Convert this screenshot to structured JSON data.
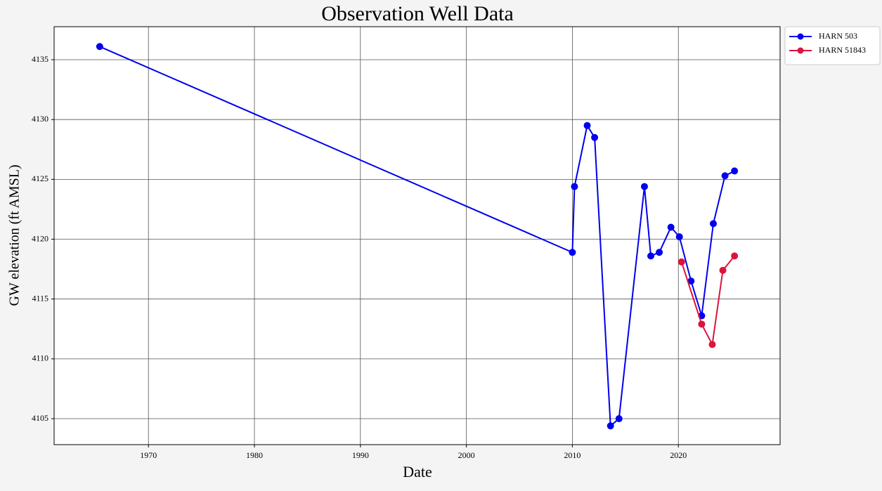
{
  "chart_data": {
    "type": "line",
    "title": "Observation Well Data",
    "xlabel": "Date",
    "ylabel": "GW elevation (ft AMSL)",
    "xlim": [
      1961.1,
      2029.6
    ],
    "xticks": [
      1970,
      1980,
      1990,
      2000,
      2010,
      2020
    ],
    "ylim": [
      4102.83,
      4137.76
    ],
    "yticks": [
      4105,
      4110,
      4115,
      4120,
      4125,
      4130,
      4135
    ],
    "grid": true,
    "legend": "outside upper right",
    "series": [
      {
        "name": "HARN 503",
        "color": "#0000ee",
        "x": [
          1965.4,
          2010.0,
          2010.2,
          2011.4,
          2012.1,
          2013.6,
          2014.4,
          2016.8,
          2017.4,
          2018.2,
          2019.3,
          2020.1,
          2021.2,
          2022.2,
          2023.3,
          2024.4,
          2025.3
        ],
        "values": [
          4136.1,
          4118.9,
          4124.4,
          4129.5,
          4128.5,
          4104.4,
          4105.0,
          4124.4,
          4118.6,
          4118.9,
          4121.0,
          4120.2,
          4116.5,
          4113.6,
          4121.3,
          4125.3,
          4125.7
        ]
      },
      {
        "name": "HARN 51843",
        "color": "#dc143c",
        "x": [
          2020.3,
          2022.2,
          2023.2,
          2024.2,
          2025.3
        ],
        "values": [
          4118.1,
          4112.9,
          4111.2,
          4117.4,
          4118.6
        ]
      }
    ]
  }
}
